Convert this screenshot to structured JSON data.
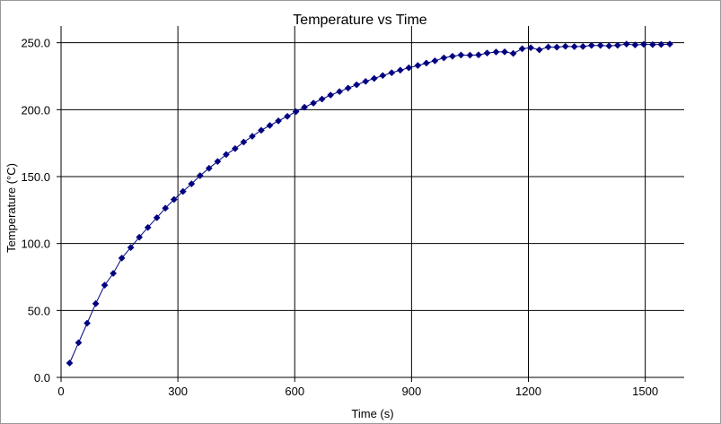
{
  "chart_data": {
    "type": "scatter",
    "title": "Temperature vs Time",
    "xlabel": "Time (s)",
    "ylabel": "Temperature (°C)",
    "xlim": [
      0,
      1600
    ],
    "ylim": [
      0,
      262.5
    ],
    "x_ticks": [
      0,
      300,
      600,
      900,
      1200,
      1500
    ],
    "x_tick_labels": [
      "0",
      "300",
      "600",
      "900",
      "1200",
      "1500"
    ],
    "y_ticks": [
      0,
      50,
      100,
      150,
      200,
      250
    ],
    "y_tick_labels": [
      "0.0",
      "50.0",
      "100.0",
      "150.0",
      "200.0",
      "250.0"
    ],
    "grid": true,
    "legend": "none",
    "series": [
      {
        "color": "#000080",
        "marker": "diamond",
        "line": true,
        "x": [
          22,
          45,
          67,
          89,
          112,
          134,
          156,
          179,
          201,
          223,
          246,
          268,
          290,
          313,
          335,
          357,
          380,
          402,
          424,
          447,
          469,
          491,
          514,
          536,
          558,
          581,
          603,
          625,
          648,
          670,
          692,
          715,
          737,
          759,
          782,
          804,
          826,
          849,
          871,
          893,
          916,
          938,
          960,
          983,
          1005,
          1027,
          1050,
          1072,
          1094,
          1117,
          1139,
          1161,
          1184,
          1206,
          1228,
          1251,
          1273,
          1295,
          1318,
          1340,
          1362,
          1385,
          1407,
          1429,
          1452,
          1474,
          1496,
          1519,
          1541,
          1563
        ],
        "y": [
          10.7,
          25.9,
          40.5,
          55.1,
          68.9,
          77.7,
          89.1,
          97.0,
          104.7,
          112.0,
          119.3,
          126.4,
          132.9,
          138.9,
          144.6,
          150.7,
          156.2,
          161.3,
          166.5,
          170.9,
          175.8,
          180.1,
          184.6,
          188.2,
          191.6,
          195.0,
          198.5,
          201.8,
          204.9,
          207.9,
          210.9,
          213.5,
          216.1,
          218.6,
          221.1,
          223.3,
          225.5,
          227.6,
          229.5,
          231.3,
          233.0,
          234.8,
          236.5,
          238.7,
          239.9,
          240.8,
          240.7,
          240.9,
          242.3,
          243.1,
          243.2,
          242.0,
          245.5,
          246.3,
          244.7,
          246.8,
          246.7,
          247.3,
          247.1,
          247.2,
          248.0,
          248.0,
          247.6,
          248.1,
          249.0,
          248.4,
          248.8,
          248.6,
          248.7,
          249.0
        ]
      }
    ]
  }
}
